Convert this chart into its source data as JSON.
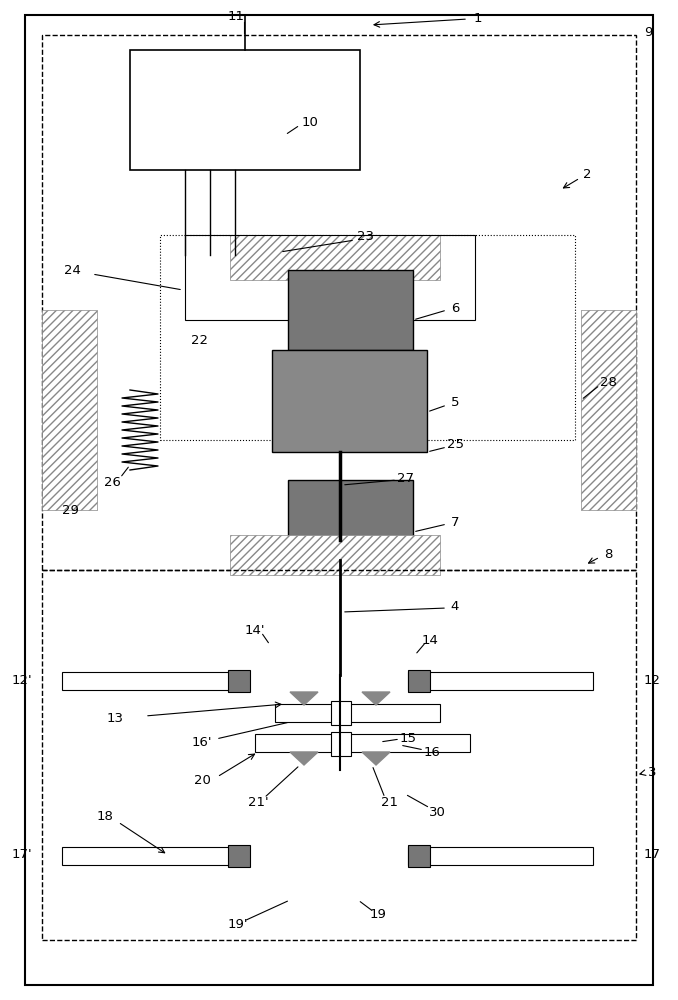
{
  "bg_color": "#ffffff",
  "lc": "#000000",
  "dark_fill": "#777777",
  "hatch_color": "#999999",
  "contact_fill": "#aaaaaa"
}
